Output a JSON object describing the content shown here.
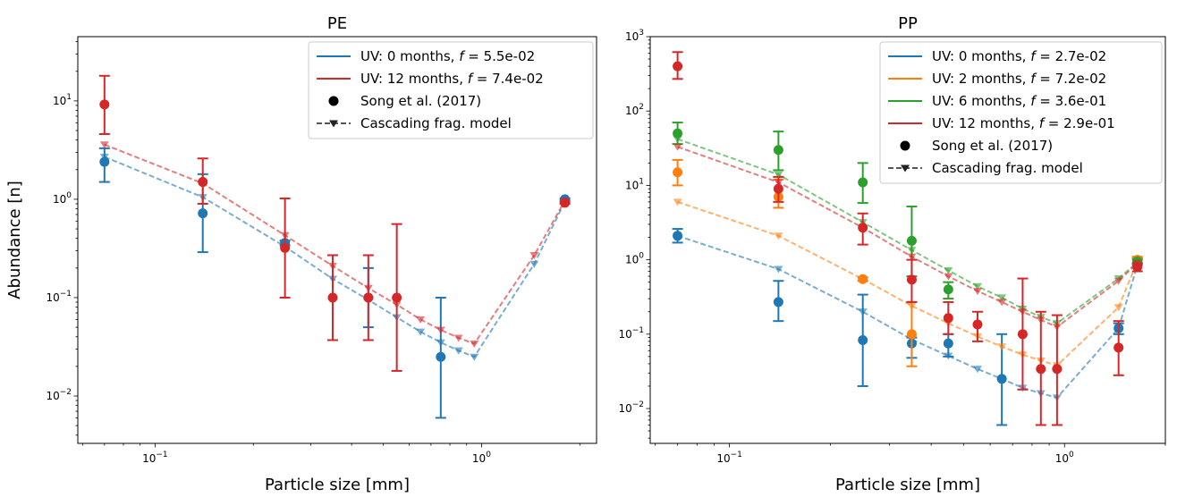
{
  "chart_data": [
    {
      "type": "line",
      "title": "PE",
      "xlabel": "Particle size [mm]",
      "ylabel": "Abundance [n]",
      "xscale": "log",
      "yscale": "log",
      "xlim": [
        0.058,
        2.25
      ],
      "ylim": [
        0.0033,
        45
      ],
      "x_ticks": [
        {
          "value": 0.1,
          "base": "10",
          "exp": "−1"
        },
        {
          "value": 1,
          "base": "10",
          "exp": "0"
        }
      ],
      "y_ticks": [
        {
          "value": 0.01,
          "base": "10",
          "exp": "−2"
        },
        {
          "value": 0.1,
          "base": "10",
          "exp": "−1"
        },
        {
          "value": 1,
          "base": "10",
          "exp": "0"
        },
        {
          "value": 10,
          "base": "10",
          "exp": "1"
        }
      ],
      "legend_position": "top-right",
      "legend": [
        {
          "kind": "line",
          "color": "#1f77b4",
          "pre": "UV: 0 months, ",
          "f": "f",
          "post": " = 5.5e-02"
        },
        {
          "kind": "line",
          "color": "#d62728",
          "pre": "UV: 12 months, ",
          "f": "f",
          "post": " = 7.4e-02"
        },
        {
          "kind": "dot",
          "color": "#000000",
          "pre": "Song et al. (2017)",
          "f": "",
          "post": ""
        },
        {
          "kind": "model",
          "color": "#555555",
          "pre": "Cascading frag. model",
          "f": "",
          "post": ""
        }
      ],
      "series": [
        {
          "color": "#1f77b4",
          "observed": [
            {
              "x": 0.07,
              "y": 2.4,
              "lo": 1.5,
              "hi": 3.3
            },
            {
              "x": 0.14,
              "y": 0.72,
              "lo": 0.29,
              "hi": 1.8
            },
            {
              "x": 0.25,
              "y": 0.36,
              "lo": 0.34,
              "hi": 0.38
            },
            {
              "x": 0.45,
              "y": 0.1,
              "lo": 0.05,
              "hi": 0.2
            },
            {
              "x": 0.75,
              "y": 0.025,
              "lo": 0.006,
              "hi": 0.1
            },
            {
              "x": 1.8,
              "y": 1.0,
              "lo": 0.98,
              "hi": 1.02
            }
          ],
          "model": [
            {
              "x": 0.07,
              "y": 2.7
            },
            {
              "x": 0.14,
              "y": 1.05
            },
            {
              "x": 0.25,
              "y": 0.33
            },
            {
              "x": 0.35,
              "y": 0.155
            },
            {
              "x": 0.45,
              "y": 0.095
            },
            {
              "x": 0.55,
              "y": 0.063
            },
            {
              "x": 0.65,
              "y": 0.045
            },
            {
              "x": 0.75,
              "y": 0.035
            },
            {
              "x": 0.85,
              "y": 0.029
            },
            {
              "x": 0.95,
              "y": 0.025
            },
            {
              "x": 1.45,
              "y": 0.22
            },
            {
              "x": 1.8,
              "y": 0.95
            }
          ]
        },
        {
          "color": "#d62728",
          "observed": [
            {
              "x": 0.07,
              "y": 9.2,
              "lo": 4.6,
              "hi": 18
            },
            {
              "x": 0.14,
              "y": 1.5,
              "lo": 0.9,
              "hi": 2.6
            },
            {
              "x": 0.25,
              "y": 0.32,
              "lo": 0.1,
              "hi": 1.02
            },
            {
              "x": 0.35,
              "y": 0.1,
              "lo": 0.037,
              "hi": 0.27
            },
            {
              "x": 0.45,
              "y": 0.1,
              "lo": 0.037,
              "hi": 0.27
            },
            {
              "x": 0.55,
              "y": 0.1,
              "lo": 0.018,
              "hi": 0.56
            },
            {
              "x": 1.8,
              "y": 0.92,
              "lo": 0.9,
              "hi": 0.94
            }
          ],
          "model": [
            {
              "x": 0.07,
              "y": 3.6
            },
            {
              "x": 0.14,
              "y": 1.45
            },
            {
              "x": 0.25,
              "y": 0.43
            },
            {
              "x": 0.35,
              "y": 0.21
            },
            {
              "x": 0.45,
              "y": 0.125
            },
            {
              "x": 0.55,
              "y": 0.085
            },
            {
              "x": 0.65,
              "y": 0.06
            },
            {
              "x": 0.75,
              "y": 0.047
            },
            {
              "x": 0.85,
              "y": 0.039
            },
            {
              "x": 0.95,
              "y": 0.034
            },
            {
              "x": 1.45,
              "y": 0.27
            },
            {
              "x": 1.8,
              "y": 0.97
            }
          ]
        }
      ]
    },
    {
      "type": "line",
      "title": "PP",
      "xlabel": "Particle size [mm]",
      "ylabel": "",
      "xscale": "log",
      "yscale": "log",
      "xlim": [
        0.058,
        2.0
      ],
      "ylim": [
        0.0034,
        1000
      ],
      "x_ticks": [
        {
          "value": 0.1,
          "base": "10",
          "exp": "−1"
        },
        {
          "value": 1,
          "base": "10",
          "exp": "0"
        }
      ],
      "y_ticks": [
        {
          "value": 0.01,
          "base": "10",
          "exp": "−2"
        },
        {
          "value": 0.1,
          "base": "10",
          "exp": "−1"
        },
        {
          "value": 1,
          "base": "10",
          "exp": "0"
        },
        {
          "value": 10,
          "base": "10",
          "exp": "1"
        },
        {
          "value": 100,
          "base": "10",
          "exp": "2"
        },
        {
          "value": 1000,
          "base": "10",
          "exp": "3"
        }
      ],
      "legend_position": "top-right",
      "legend": [
        {
          "kind": "line",
          "color": "#1f77b4",
          "pre": "UV: 0 months, ",
          "f": "f",
          "post": " = 2.7e-02"
        },
        {
          "kind": "line",
          "color": "#ff7f0e",
          "pre": "UV: 2 months, ",
          "f": "f",
          "post": " = 7.2e-02"
        },
        {
          "kind": "line",
          "color": "#2ca02c",
          "pre": "UV: 6 months, ",
          "f": "f",
          "post": " = 3.6e-01"
        },
        {
          "kind": "line",
          "color": "#d62728",
          "pre": "UV: 12 months, ",
          "f": "f",
          "post": " = 2.9e-01"
        },
        {
          "kind": "dot",
          "color": "#000000",
          "pre": "Song et al. (2017)",
          "f": "",
          "post": ""
        },
        {
          "kind": "model",
          "color": "#555555",
          "pre": "Cascading frag. model",
          "f": "",
          "post": ""
        }
      ],
      "series": [
        {
          "color": "#1f77b4",
          "observed": [
            {
              "x": 0.07,
              "y": 2.1,
              "lo": 1.7,
              "hi": 2.6
            },
            {
              "x": 0.14,
              "y": 0.27,
              "lo": 0.15,
              "hi": 0.52
            },
            {
              "x": 0.25,
              "y": 0.083,
              "lo": 0.02,
              "hi": 0.34
            },
            {
              "x": 0.35,
              "y": 0.075,
              "lo": 0.048,
              "hi": 0.09
            },
            {
              "x": 0.45,
              "y": 0.075,
              "lo": 0.05,
              "hi": 0.1
            },
            {
              "x": 0.65,
              "y": 0.025,
              "lo": 0.006,
              "hi": 0.1
            },
            {
              "x": 1.45,
              "y": 0.12,
              "lo": 0.1,
              "hi": 0.14
            },
            {
              "x": 1.65,
              "y": 0.95,
              "lo": 0.85,
              "hi": 1.05
            }
          ],
          "model": [
            {
              "x": 0.07,
              "y": 2.1
            },
            {
              "x": 0.14,
              "y": 0.75
            },
            {
              "x": 0.25,
              "y": 0.2
            },
            {
              "x": 0.35,
              "y": 0.085
            },
            {
              "x": 0.45,
              "y": 0.051
            },
            {
              "x": 0.55,
              "y": 0.034
            },
            {
              "x": 0.65,
              "y": 0.025
            },
            {
              "x": 0.75,
              "y": 0.019
            },
            {
              "x": 0.85,
              "y": 0.016
            },
            {
              "x": 0.95,
              "y": 0.014
            },
            {
              "x": 1.45,
              "y": 0.12
            },
            {
              "x": 1.65,
              "y": 0.85
            }
          ]
        },
        {
          "color": "#ff7f0e",
          "observed": [
            {
              "x": 0.07,
              "y": 15,
              "lo": 10,
              "hi": 22
            },
            {
              "x": 0.14,
              "y": 7.0,
              "lo": 5.0,
              "hi": 12
            },
            {
              "x": 0.25,
              "y": 0.55,
              "lo": 0.52,
              "hi": 0.58
            },
            {
              "x": 0.35,
              "y": 0.1,
              "lo": 0.037,
              "hi": 0.27
            },
            {
              "x": 1.65,
              "y": 1.0,
              "lo": 0.9,
              "hi": 1.1
            }
          ],
          "model": [
            {
              "x": 0.07,
              "y": 6.0
            },
            {
              "x": 0.14,
              "y": 2.1
            },
            {
              "x": 0.25,
              "y": 0.55
            },
            {
              "x": 0.35,
              "y": 0.24
            },
            {
              "x": 0.45,
              "y": 0.14
            },
            {
              "x": 0.55,
              "y": 0.093
            },
            {
              "x": 0.65,
              "y": 0.068
            },
            {
              "x": 0.75,
              "y": 0.053
            },
            {
              "x": 0.85,
              "y": 0.044
            },
            {
              "x": 0.95,
              "y": 0.038
            },
            {
              "x": 1.45,
              "y": 0.23
            },
            {
              "x": 1.65,
              "y": 0.95
            }
          ]
        },
        {
          "color": "#2ca02c",
          "observed": [
            {
              "x": 0.07,
              "y": 50,
              "lo": 36,
              "hi": 70
            },
            {
              "x": 0.14,
              "y": 30,
              "lo": 16,
              "hi": 53
            },
            {
              "x": 0.25,
              "y": 11,
              "lo": 5.8,
              "hi": 20
            },
            {
              "x": 0.35,
              "y": 1.8,
              "lo": 0.6,
              "hi": 5.2
            },
            {
              "x": 0.45,
              "y": 0.4,
              "lo": 0.3,
              "hi": 0.5
            },
            {
              "x": 1.65,
              "y": 0.95,
              "lo": 0.9,
              "hi": 1.0
            }
          ],
          "model": [
            {
              "x": 0.07,
              "y": 42
            },
            {
              "x": 0.14,
              "y": 14
            },
            {
              "x": 0.25,
              "y": 3.2
            },
            {
              "x": 0.35,
              "y": 1.35
            },
            {
              "x": 0.45,
              "y": 0.72
            },
            {
              "x": 0.55,
              "y": 0.44
            },
            {
              "x": 0.65,
              "y": 0.31
            },
            {
              "x": 0.75,
              "y": 0.22
            },
            {
              "x": 0.85,
              "y": 0.17
            },
            {
              "x": 0.95,
              "y": 0.14
            },
            {
              "x": 1.45,
              "y": 0.56
            },
            {
              "x": 1.65,
              "y": 0.92
            }
          ]
        },
        {
          "color": "#d62728",
          "observed": [
            {
              "x": 0.07,
              "y": 400,
              "lo": 270,
              "hi": 620
            },
            {
              "x": 0.14,
              "y": 9.0,
              "lo": 6.0,
              "hi": 13
            },
            {
              "x": 0.25,
              "y": 2.7,
              "lo": 1.6,
              "hi": 4.2
            },
            {
              "x": 0.35,
              "y": 0.54,
              "lo": 0.27,
              "hi": 1.0
            },
            {
              "x": 0.45,
              "y": 0.165,
              "lo": 0.1,
              "hi": 0.27
            },
            {
              "x": 0.55,
              "y": 0.135,
              "lo": 0.08,
              "hi": 0.2
            },
            {
              "x": 0.75,
              "y": 0.1,
              "lo": 0.018,
              "hi": 0.56
            },
            {
              "x": 0.85,
              "y": 0.034,
              "lo": 0.006,
              "hi": 0.2
            },
            {
              "x": 0.95,
              "y": 0.034,
              "lo": 0.006,
              "hi": 0.18
            },
            {
              "x": 1.45,
              "y": 0.066,
              "lo": 0.028,
              "hi": 0.15
            },
            {
              "x": 1.65,
              "y": 0.8,
              "lo": 0.7,
              "hi": 0.9
            }
          ],
          "model": [
            {
              "x": 0.07,
              "y": 33
            },
            {
              "x": 0.14,
              "y": 11
            },
            {
              "x": 0.25,
              "y": 2.7
            },
            {
              "x": 0.35,
              "y": 1.1
            },
            {
              "x": 0.45,
              "y": 0.6
            },
            {
              "x": 0.55,
              "y": 0.38
            },
            {
              "x": 0.65,
              "y": 0.27
            },
            {
              "x": 0.75,
              "y": 0.2
            },
            {
              "x": 0.85,
              "y": 0.155
            },
            {
              "x": 0.95,
              "y": 0.125
            },
            {
              "x": 1.45,
              "y": 0.52
            },
            {
              "x": 1.65,
              "y": 0.9
            }
          ]
        }
      ]
    }
  ]
}
